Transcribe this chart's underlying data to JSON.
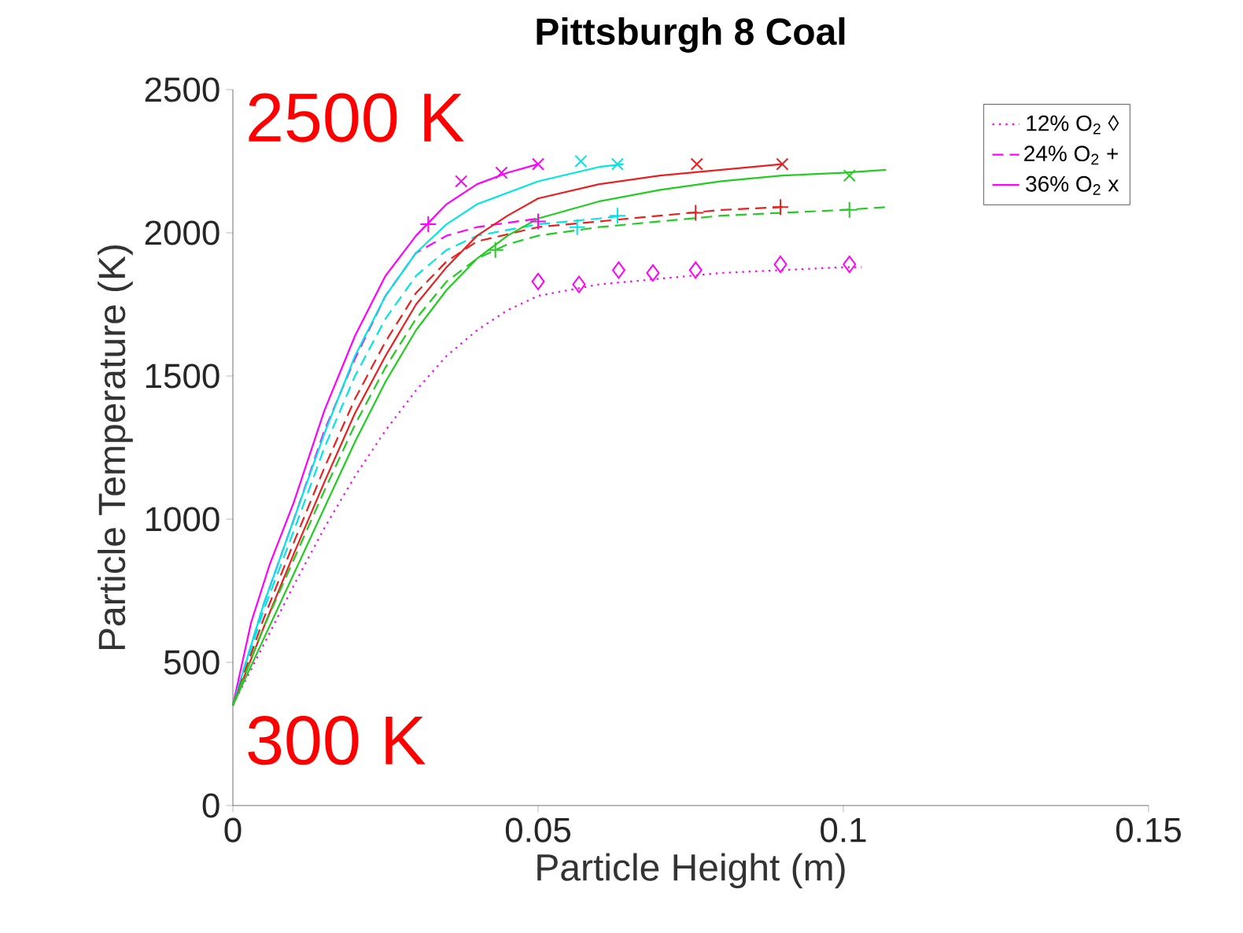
{
  "chart_data": {
    "type": "line",
    "title": "Pittsburgh 8 Coal",
    "xlabel": "Particle Height (m)",
    "ylabel": "Particle Temperature (K)",
    "xlim": [
      0,
      0.15
    ],
    "xticks": [
      0,
      0.05,
      0.1,
      0.15
    ],
    "ylim": [
      0,
      2500
    ],
    "yticks": [
      0,
      500,
      1000,
      1500,
      2000,
      2500
    ],
    "grid": false,
    "legend": "top right",
    "annotations": [
      "2500 K",
      "300 K"
    ],
    "series": [
      {
        "name": "12% O$_{2}$ ◊",
        "color": "#ff00ff",
        "line_style": "dotted",
        "x": [
          0,
          0.005,
          0.01,
          0.015,
          0.02,
          0.025,
          0.03,
          0.035,
          0.04,
          0.045,
          0.05,
          0.06,
          0.07,
          0.08,
          0.09,
          0.1,
          0.103
        ],
        "values": [
          350,
          560,
          770,
          970,
          1150,
          1310,
          1450,
          1570,
          1660,
          1730,
          1780,
          1820,
          1840,
          1860,
          1870,
          1880,
          1880
        ]
      },
      {
        "name": "24% O$_{2}$ +",
        "color": "#ff00ff",
        "line_style": "dashed",
        "x": [
          0,
          0.005,
          0.01,
          0.015,
          0.02,
          0.025,
          0.03,
          0.035,
          0.04,
          0.05
        ],
        "values": [
          350,
          700,
          1000,
          1310,
          1560,
          1780,
          1930,
          1990,
          2020,
          2050
        ]
      },
      {
        "name": "36% O$_{2}$ x",
        "color": "#ff00ff",
        "line_style": "solid",
        "x": [
          0,
          0.003,
          0.006,
          0.01,
          0.015,
          0.02,
          0.025,
          0.03,
          0.035,
          0.04,
          0.045,
          0.05
        ],
        "values": [
          350,
          640,
          840,
          1060,
          1380,
          1640,
          1850,
          1990,
          2100,
          2170,
          2210,
          2240
        ]
      },
      {
        "color": "#00e5e5",
        "line_style": "solid",
        "x": [
          0,
          0.005,
          0.01,
          0.015,
          0.02,
          0.025,
          0.03,
          0.035,
          0.04,
          0.05,
          0.06,
          0.064
        ],
        "values": [
          350,
          700,
          1000,
          1300,
          1570,
          1780,
          1930,
          2030,
          2100,
          2180,
          2230,
          2240
        ]
      },
      {
        "color": "#00e5e5",
        "line_style": "dashed",
        "x": [
          0,
          0.005,
          0.01,
          0.015,
          0.02,
          0.025,
          0.03,
          0.035,
          0.04,
          0.05,
          0.06,
          0.064
        ],
        "values": [
          350,
          680,
          960,
          1250,
          1500,
          1700,
          1850,
          1940,
          1990,
          2030,
          2050,
          2060
        ]
      },
      {
        "color": "#e82020",
        "line_style": "solid",
        "x": [
          0,
          0.005,
          0.01,
          0.015,
          0.02,
          0.025,
          0.03,
          0.035,
          0.04,
          0.045,
          0.05,
          0.06,
          0.07,
          0.08,
          0.09
        ],
        "values": [
          350,
          620,
          880,
          1130,
          1370,
          1570,
          1750,
          1880,
          1990,
          2060,
          2120,
          2170,
          2200,
          2220,
          2240
        ]
      },
      {
        "color": "#e82020",
        "line_style": "dashed",
        "x": [
          0,
          0.005,
          0.01,
          0.015,
          0.02,
          0.025,
          0.03,
          0.035,
          0.04,
          0.05,
          0.06,
          0.07,
          0.08,
          0.09
        ],
        "values": [
          350,
          650,
          920,
          1180,
          1420,
          1620,
          1790,
          1900,
          1970,
          2020,
          2040,
          2060,
          2080,
          2090
        ]
      },
      {
        "color": "#22cc22",
        "line_style": "solid",
        "x": [
          0,
          0.005,
          0.01,
          0.015,
          0.02,
          0.025,
          0.03,
          0.035,
          0.04,
          0.045,
          0.05,
          0.06,
          0.07,
          0.08,
          0.09,
          0.1,
          0.107
        ],
        "values": [
          350,
          580,
          810,
          1040,
          1270,
          1480,
          1660,
          1800,
          1910,
          1990,
          2050,
          2110,
          2150,
          2180,
          2200,
          2210,
          2220
        ]
      },
      {
        "color": "#22cc22",
        "line_style": "dashed",
        "x": [
          0,
          0.005,
          0.01,
          0.015,
          0.02,
          0.025,
          0.03,
          0.035,
          0.04,
          0.045,
          0.05,
          0.06,
          0.07,
          0.08,
          0.09,
          0.1,
          0.107
        ],
        "values": [
          350,
          620,
          860,
          1100,
          1330,
          1530,
          1700,
          1830,
          1910,
          1960,
          1990,
          2020,
          2040,
          2060,
          2070,
          2080,
          2090
        ]
      },
      {
        "type": "scatter",
        "marker": "diamond",
        "color": "#ff00ff",
        "x": [
          0.05,
          0.0567,
          0.0632,
          0.0688,
          0.0758,
          0.0897,
          0.101
        ],
        "values": [
          1830,
          1820,
          1870,
          1860,
          1870,
          1890,
          1890
        ]
      },
      {
        "type": "scatter",
        "marker": "cross",
        "color": "#ff00ff",
        "x": [
          0.032,
          0.05
        ],
        "values": [
          2030,
          2040
        ]
      },
      {
        "type": "scatter",
        "marker": "cross",
        "color": "#00e5e5",
        "x": [
          0.0564,
          0.063
        ],
        "values": [
          2020,
          2060
        ]
      },
      {
        "type": "scatter",
        "marker": "cross",
        "color": "#e82020",
        "x": [
          0.0758,
          0.0897
        ],
        "values": [
          2070,
          2090
        ]
      },
      {
        "type": "scatter",
        "marker": "cross",
        "color": "#22cc22",
        "x": [
          0.043,
          0.101
        ],
        "values": [
          1940,
          2080
        ]
      },
      {
        "type": "scatter",
        "marker": "x",
        "color": "#ff00ff",
        "x": [
          0.0374,
          0.044,
          0.05
        ],
        "values": [
          2180,
          2210,
          2240
        ]
      },
      {
        "type": "scatter",
        "marker": "x",
        "color": "#00e5e5",
        "x": [
          0.057,
          0.063
        ],
        "values": [
          2250,
          2240
        ]
      },
      {
        "type": "scatter",
        "marker": "x",
        "color": "#e82020",
        "x": [
          0.076,
          0.09
        ],
        "values": [
          2240,
          2240
        ]
      },
      {
        "type": "scatter",
        "marker": "x",
        "color": "#22cc22",
        "x": [
          0.101
        ],
        "values": [
          2200
        ]
      }
    ]
  }
}
